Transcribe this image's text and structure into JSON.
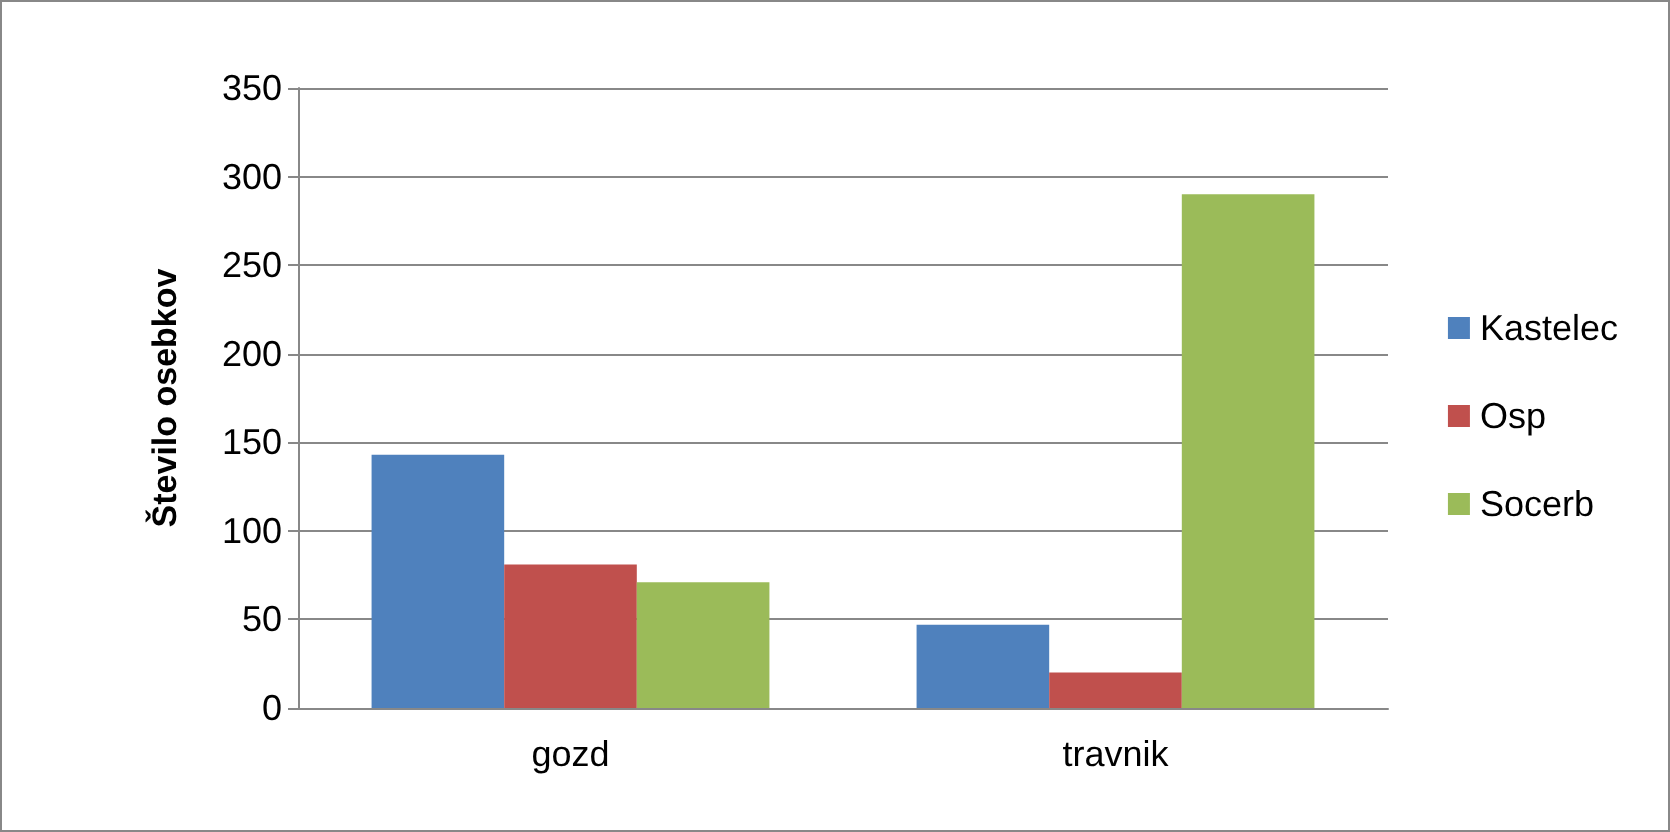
{
  "chart_data": {
    "type": "bar",
    "ylabel": "Število osebkov",
    "categories": [
      "gozd",
      "travnik"
    ],
    "series": [
      {
        "name": "Kastelec",
        "color": "#4f81bd",
        "values": [
          143,
          47
        ]
      },
      {
        "name": "Osp",
        "color": "#c0504d",
        "values": [
          81,
          20
        ]
      },
      {
        "name": "Socerb",
        "color": "#9bbb59",
        "values": [
          71,
          290
        ]
      }
    ],
    "ylim": [
      0,
      350
    ],
    "yticks": [
      0,
      50,
      100,
      150,
      200,
      250,
      300,
      350
    ],
    "grid": "y",
    "legend": "right"
  }
}
